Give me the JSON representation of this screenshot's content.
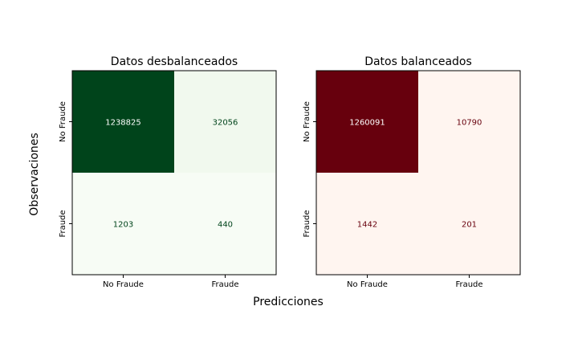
{
  "figure": {
    "xlabel": "Predicciones",
    "ylabel": "Observaciones"
  },
  "chart_data": [
    {
      "type": "heatmap",
      "title": "Datos desbalanceados",
      "x_categories": [
        "No Fraude",
        "Fraude"
      ],
      "y_categories": [
        "No Fraude",
        "Fraude"
      ],
      "values": [
        [
          1238825,
          32056
        ],
        [
          1203,
          440
        ]
      ],
      "colormap": "Greens",
      "colors": {
        "high": "#00441b",
        "low": "#f7fcf5",
        "mid": "#f1f9ee",
        "text_dark": "#00441b",
        "text_light": "#ffffff"
      }
    },
    {
      "type": "heatmap",
      "title": "Datos balanceados",
      "x_categories": [
        "No Fraude",
        "Fraude"
      ],
      "y_categories": [
        "No Fraude",
        "Fraude"
      ],
      "values": [
        [
          1260091,
          10790
        ],
        [
          1442,
          201
        ]
      ],
      "colormap": "Reds",
      "colors": {
        "high": "#67000d",
        "low": "#fff5f0",
        "mid": "#fff2ec",
        "text_dark": "#67000d",
        "text_light": "#ffffff"
      }
    }
  ]
}
